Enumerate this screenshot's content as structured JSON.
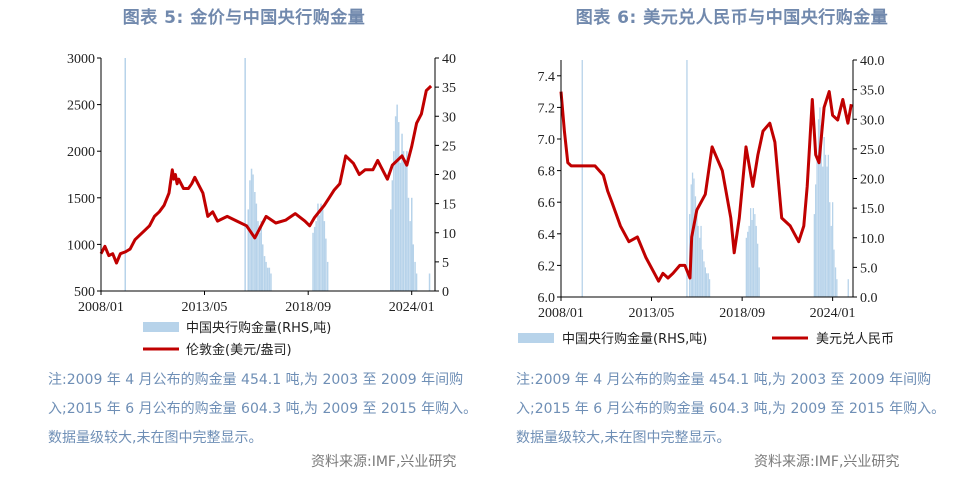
{
  "panels": [
    {
      "title": "图表 5:  金价与中国央行购金量",
      "note": "注:2009 年 4 月公布的购金量 454.1 吨,为 2003 至 2009 年间购入;2015 年 6 月公布的购金量 604.3 吨,为 2009 至 2015 年购入。数据量级较大,未在图中完整显示。",
      "source": "资料来源:IMF,兴业研究"
    },
    {
      "title": "图表 6:  美元兑人民币与中国央行购金量",
      "note": "注:2009 年 4 月公布的购金量 454.1 吨,为 2003 至 2009 年间购入;2015 年 6 月公布的购金量 604.3 吨,为 2009 至 2015 年购入。数据量级较大,未在图中完整显示。",
      "source": "资料来源:IMF,兴业研究"
    }
  ],
  "chart_data": [
    {
      "type": "line",
      "x_range": [
        2008.0,
        2025.2
      ],
      "x_ticks": [
        "2008/01",
        "2013/05",
        "2018/09",
        "2024/01"
      ],
      "x_tick_values": [
        2008.0,
        2013.33,
        2018.67,
        2024.0
      ],
      "y_left": {
        "ticks": [
          "500",
          "1000",
          "1500",
          "2000",
          "2500",
          "3000"
        ],
        "range": [
          500,
          3000
        ]
      },
      "y_right": {
        "ticks": [
          "0",
          "5",
          "10",
          "15",
          "20",
          "25",
          "30",
          "35",
          "40"
        ],
        "range": [
          0,
          40
        ]
      },
      "series": [
        {
          "name": "中国央行购金量(RHS,吨)",
          "type": "bar",
          "axis": "right",
          "color": "#b7d3ea",
          "x": [
            2009.25,
            2015.42,
            2015.58,
            2015.67,
            2015.75,
            2015.83,
            2015.92,
            2016.0,
            2016.08,
            2016.17,
            2016.25,
            2016.33,
            2016.42,
            2016.5,
            2016.58,
            2016.67,
            2016.75,
            2018.92,
            2019.0,
            2019.08,
            2019.17,
            2019.25,
            2019.33,
            2019.42,
            2019.5,
            2019.58,
            2019.67,
            2022.92,
            2023.0,
            2023.08,
            2023.17,
            2023.25,
            2023.33,
            2023.42,
            2023.5,
            2023.58,
            2023.67,
            2023.75,
            2023.83,
            2023.92,
            2024.0,
            2024.08,
            2024.17,
            2024.25,
            2024.92
          ],
          "values": [
            40,
            40,
            14,
            19,
            21,
            20,
            17,
            15,
            12,
            10,
            12,
            8,
            6,
            5,
            4,
            4,
            3,
            10,
            11,
            12,
            15,
            13,
            15,
            14,
            12,
            9,
            5,
            14,
            19,
            24,
            30,
            32,
            29,
            22,
            27,
            24,
            22,
            24,
            16,
            12,
            16,
            8,
            5,
            3,
            3
          ]
        },
        {
          "name": "伦敦金(美元/盎司)",
          "type": "line",
          "axis": "left",
          "color": "#c00000",
          "x": [
            2008.0,
            2008.2,
            2008.4,
            2008.6,
            2008.8,
            2009.0,
            2009.25,
            2009.5,
            2009.75,
            2010.0,
            2010.25,
            2010.5,
            2010.75,
            2011.0,
            2011.25,
            2011.5,
            2011.67,
            2011.75,
            2011.83,
            2011.92,
            2012.0,
            2012.25,
            2012.5,
            2012.67,
            2012.83,
            2013.0,
            2013.25,
            2013.5,
            2013.75,
            2014.0,
            2014.5,
            2015.0,
            2015.5,
            2015.92,
            2016.5,
            2017.0,
            2017.5,
            2018.0,
            2018.5,
            2018.75,
            2019.0,
            2019.5,
            2019.75,
            2020.0,
            2020.3,
            2020.6,
            2021.0,
            2021.3,
            2021.6,
            2022.0,
            2022.25,
            2022.75,
            2023.0,
            2023.5,
            2023.75,
            2024.0,
            2024.25,
            2024.5,
            2024.75,
            2025.0
          ],
          "values": [
            900,
            980,
            880,
            900,
            800,
            900,
            920,
            950,
            1050,
            1100,
            1150,
            1200,
            1300,
            1350,
            1420,
            1550,
            1800,
            1700,
            1750,
            1650,
            1700,
            1600,
            1600,
            1650,
            1720,
            1650,
            1550,
            1300,
            1350,
            1250,
            1300,
            1250,
            1200,
            1070,
            1300,
            1230,
            1260,
            1330,
            1250,
            1200,
            1290,
            1420,
            1500,
            1580,
            1650,
            1950,
            1870,
            1750,
            1800,
            1800,
            1900,
            1700,
            1850,
            1950,
            1850,
            2050,
            2300,
            2400,
            2650,
            2700
          ]
        }
      ]
    },
    {
      "type": "line",
      "x_range": [
        2008.0,
        2025.2
      ],
      "x_ticks": [
        "2008/01",
        "2013/05",
        "2018/09",
        "2024/01"
      ],
      "x_tick_values": [
        2008.0,
        2013.33,
        2018.67,
        2024.0
      ],
      "y_left": {
        "ticks": [
          "6.0",
          "6.2",
          "6.4",
          "6.6",
          "6.8",
          "7.0",
          "7.2",
          "7.4"
        ],
        "range": [
          6.0,
          7.5
        ]
      },
      "y_right": {
        "ticks": [
          "0.0",
          "5.0",
          "10.0",
          "15.0",
          "20.0",
          "25.0",
          "30.0",
          "35.0",
          "40.0"
        ],
        "range": [
          0,
          40
        ]
      },
      "series": [
        {
          "name": "中国央行购金量(RHS,吨)",
          "type": "bar",
          "axis": "right",
          "color": "#b7d3ea",
          "x": [
            2009.25,
            2015.42,
            2015.58,
            2015.67,
            2015.75,
            2015.83,
            2015.92,
            2016.0,
            2016.08,
            2016.17,
            2016.25,
            2016.33,
            2016.42,
            2016.5,
            2016.58,
            2016.67,
            2016.75,
            2018.92,
            2019.0,
            2019.08,
            2019.17,
            2019.25,
            2019.33,
            2019.42,
            2019.5,
            2019.58,
            2019.67,
            2022.92,
            2023.0,
            2023.08,
            2023.17,
            2023.25,
            2023.33,
            2023.42,
            2023.5,
            2023.58,
            2023.67,
            2023.75,
            2023.83,
            2023.92,
            2024.0,
            2024.08,
            2024.17,
            2024.25,
            2024.92
          ],
          "values": [
            40,
            40,
            14,
            19,
            21,
            20,
            17,
            15,
            12,
            10,
            12,
            8,
            6,
            5,
            4,
            4,
            3,
            10,
            11,
            12,
            15,
            13,
            15,
            14,
            12,
            9,
            5,
            14,
            19,
            24,
            30,
            32,
            29,
            22,
            27,
            24,
            22,
            24,
            16,
            12,
            16,
            8,
            5,
            3,
            3
          ]
        },
        {
          "name": "美元兑人民币",
          "type": "line",
          "axis": "left",
          "color": "#c00000",
          "x": [
            2008.0,
            2008.2,
            2008.4,
            2008.6,
            2009.0,
            2010.0,
            2010.5,
            2010.75,
            2011.0,
            2011.5,
            2012.0,
            2012.5,
            2013.0,
            2013.5,
            2013.75,
            2014.0,
            2014.3,
            2014.6,
            2015.0,
            2015.3,
            2015.6,
            2015.7,
            2016.0,
            2016.5,
            2016.9,
            2017.5,
            2018.0,
            2018.2,
            2018.5,
            2018.9,
            2019.3,
            2019.6,
            2019.9,
            2020.3,
            2020.6,
            2021.0,
            2021.5,
            2022.0,
            2022.3,
            2022.5,
            2022.8,
            2023.0,
            2023.2,
            2023.5,
            2023.8,
            2024.0,
            2024.3,
            2024.6,
            2024.9,
            2025.1
          ],
          "values": [
            7.3,
            7.05,
            6.85,
            6.83,
            6.83,
            6.83,
            6.77,
            6.67,
            6.6,
            6.45,
            6.35,
            6.38,
            6.25,
            6.15,
            6.1,
            6.15,
            6.12,
            6.15,
            6.2,
            6.2,
            6.12,
            6.38,
            6.55,
            6.65,
            6.95,
            6.8,
            6.5,
            6.28,
            6.5,
            6.95,
            6.7,
            6.9,
            7.05,
            7.1,
            6.98,
            6.5,
            6.45,
            6.35,
            6.45,
            6.7,
            7.25,
            6.9,
            6.85,
            7.2,
            7.3,
            7.15,
            7.12,
            7.25,
            7.1,
            7.22
          ]
        }
      ]
    }
  ]
}
